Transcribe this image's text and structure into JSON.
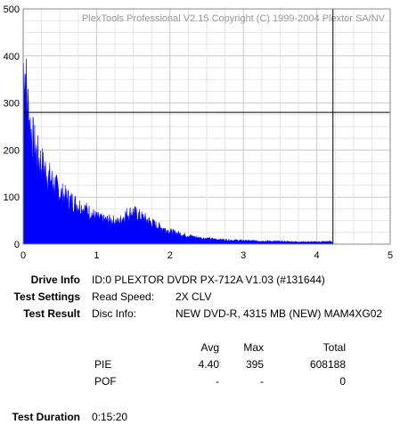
{
  "chart_data": {
    "type": "area",
    "title": "PlexTools Professional V2.15 Copyright (C) 1999-2004 Plextor SA/NV",
    "xlabel": "",
    "ylabel": "",
    "xlim": [
      0,
      5
    ],
    "ylim": [
      0,
      500
    ],
    "x_ticks": [
      "0",
      "1",
      "2",
      "3",
      "4",
      "5"
    ],
    "y_ticks": [
      "0",
      "100",
      "200",
      "300",
      "400",
      "500"
    ],
    "grid": true,
    "fill_color": "#0000ff",
    "crosshair": {
      "x": 4.22,
      "y": 280
    },
    "series": [
      {
        "values": [
          [
            0.0,
            380
          ],
          [
            0.02,
            395
          ],
          [
            0.05,
            320
          ],
          [
            0.1,
            250
          ],
          [
            0.15,
            215
          ],
          [
            0.2,
            190
          ],
          [
            0.3,
            160
          ],
          [
            0.4,
            135
          ],
          [
            0.5,
            112
          ],
          [
            0.6,
            100
          ],
          [
            0.7,
            90
          ],
          [
            0.8,
            80
          ],
          [
            0.9,
            70
          ],
          [
            1.0,
            58
          ],
          [
            1.1,
            52
          ],
          [
            1.2,
            52
          ],
          [
            1.3,
            48
          ],
          [
            1.4,
            65
          ],
          [
            1.5,
            70
          ],
          [
            1.6,
            60
          ],
          [
            1.7,
            52
          ],
          [
            1.8,
            42
          ],
          [
            1.9,
            35
          ],
          [
            2.0,
            28
          ],
          [
            2.2,
            20
          ],
          [
            2.4,
            14
          ],
          [
            2.6,
            11
          ],
          [
            2.8,
            9
          ],
          [
            3.0,
            8
          ],
          [
            3.2,
            7
          ],
          [
            3.5,
            6
          ],
          [
            3.8,
            5
          ],
          [
            4.0,
            5
          ],
          [
            4.2,
            6
          ],
          [
            4.22,
            2
          ]
        ]
      }
    ]
  },
  "info": {
    "drive_label": "Drive Info",
    "drive_value": "ID:0 PLEXTOR DVDR PX-712A V1.03 (#131644)",
    "settings_label": "Test Settings",
    "settings_key": "Read Speed:",
    "settings_value": "2X CLV",
    "result_label": "Test Result",
    "result_key": "Disc Info:",
    "result_value": "NEW DVD-R, 4315 MB (NEW) MAM4XG02",
    "duration_label": "Test Duration",
    "duration_value": "0:15:20"
  },
  "stats": {
    "headers": [
      "Avg",
      "Max",
      "Total"
    ],
    "rows": [
      {
        "name": "PIE",
        "avg": "4.40",
        "max": "395",
        "total": "608188"
      },
      {
        "name": "POF",
        "avg": "-",
        "max": "-",
        "total": "0"
      }
    ]
  }
}
